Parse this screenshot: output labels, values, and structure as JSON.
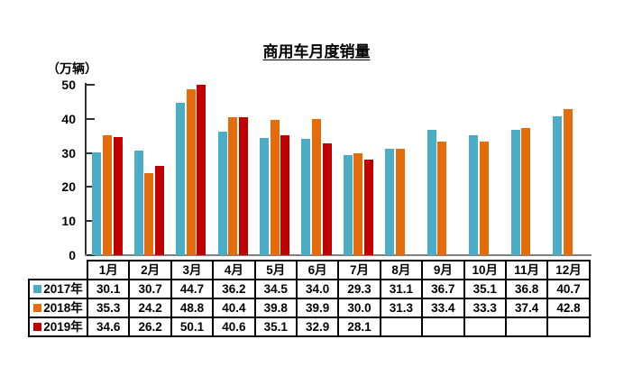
{
  "title": "商用车月度销量",
  "unit_label": "（万辆）",
  "colors": {
    "series_2017": "#4BACC6",
    "series_2018": "#E46C0A",
    "series_2019": "#C00000",
    "axis": "#303030",
    "baseline": "#808080",
    "table_border": "#000000",
    "background": "#FFFFFF",
    "text": "#000000"
  },
  "chart_data": {
    "type": "bar",
    "title": "商用车月度销量",
    "ylabel": "（万辆）",
    "xlabel": "",
    "categories": [
      "1月",
      "2月",
      "3月",
      "4月",
      "5月",
      "6月",
      "7月",
      "8月",
      "9月",
      "10月",
      "11月",
      "12月"
    ],
    "series": [
      {
        "name": "2017年",
        "color": "#4BACC6",
        "values": [
          30.1,
          30.7,
          44.7,
          36.2,
          34.5,
          34.0,
          29.3,
          31.1,
          36.7,
          35.1,
          36.8,
          40.7
        ]
      },
      {
        "name": "2018年",
        "color": "#E46C0A",
        "values": [
          35.3,
          24.2,
          48.8,
          40.4,
          39.8,
          39.9,
          30.0,
          31.3,
          33.4,
          33.3,
          37.4,
          42.8
        ]
      },
      {
        "name": "2019年",
        "color": "#C00000",
        "values": [
          34.6,
          26.2,
          50.1,
          40.6,
          35.1,
          32.9,
          28.1,
          null,
          null,
          null,
          null,
          null
        ]
      }
    ],
    "yticks": [
      0,
      10,
      20,
      30,
      40,
      50
    ],
    "ylim": [
      0,
      50
    ],
    "grid": false,
    "legend_position": "table-left",
    "data_table_shown": true
  }
}
